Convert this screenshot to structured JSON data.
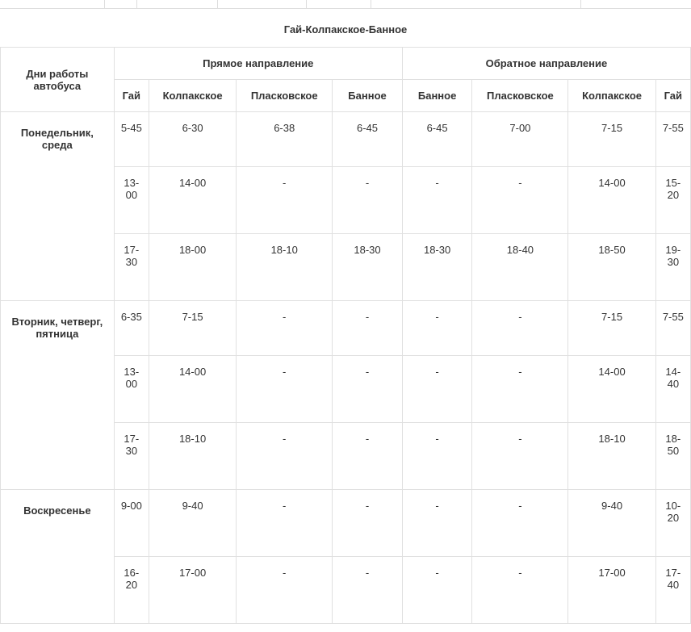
{
  "title": "Гай-Колпакское-Банное",
  "headers": {
    "days": "Дни работы автобуса",
    "forward": "Прямое направление",
    "backward": "Обратное направление",
    "cols": [
      "Гай",
      "Колпакское",
      "Пласковское",
      "Банное",
      "Банное",
      "Пласковское",
      "Колпакское",
      "Гай"
    ]
  },
  "groups": [
    {
      "day": "Понедельник, среда",
      "rows": [
        [
          "5-45",
          "6-30",
          "6-38",
          "6-45",
          "6-45",
          "7-00",
          "7-15",
          "7-55"
        ],
        [
          "13-00",
          "14-00",
          "-",
          "-",
          "-",
          "-",
          "14-00",
          "15-20"
        ],
        [
          "17-30",
          "18-00",
          "18-10",
          "18-30",
          "18-30",
          "18-40",
          "18-50",
          "19-30"
        ]
      ]
    },
    {
      "day": "Вторник, четверг, пятница",
      "rows": [
        [
          "6-35",
          "7-15",
          "-",
          "-",
          "-",
          "-",
          "7-15",
          "7-55"
        ],
        [
          "13-00",
          "14-00",
          "-",
          "-",
          "-",
          "-",
          "14-00",
          "14-40"
        ],
        [
          "17-30",
          "18-10",
          "-",
          "-",
          "-",
          "-",
          "18-10",
          "18-50"
        ]
      ]
    },
    {
      "day": "Воскресенье",
      "rows": [
        [
          "9-00",
          "9-40",
          "-",
          "-",
          "-",
          "-",
          "9-40",
          "10-20"
        ],
        [
          "16-20",
          "17-00",
          "-",
          "-",
          "-",
          "-",
          "17-00",
          "17-40"
        ]
      ]
    }
  ],
  "topEmptyWidths": [
    130,
    40,
    100,
    110,
    80,
    260
  ]
}
